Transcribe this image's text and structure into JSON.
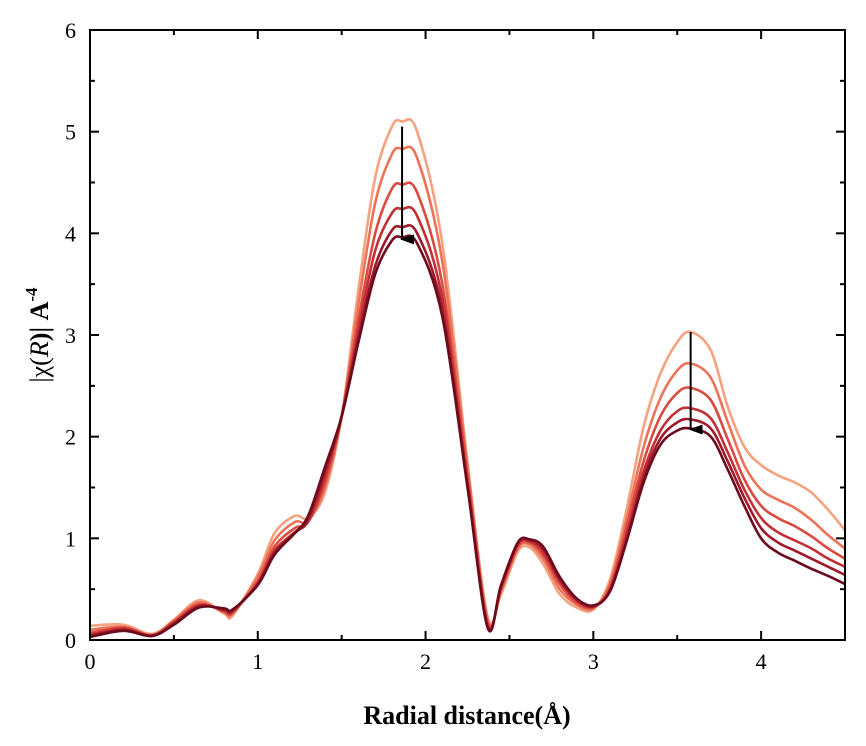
{
  "chart_data": {
    "type": "line",
    "title": "",
    "xlabel": "Radial distance(Å)",
    "ylabel_prefix": "|χ(",
    "ylabel_var": "R",
    "ylabel_mid": ")| A",
    "ylabel_sup": "-4",
    "xlim": [
      0,
      4.5
    ],
    "ylim": [
      0,
      6
    ],
    "xticks": [
      0,
      1,
      2,
      3,
      4
    ],
    "yticks": [
      0,
      1,
      2,
      3,
      4,
      5,
      6
    ],
    "grid": false,
    "legend": "none",
    "arrows": [
      {
        "x": 1.86,
        "from": 5.05,
        "to": 3.94
      },
      {
        "x": 3.58,
        "from": 3.03,
        "to": 2.07
      }
    ],
    "series": [
      {
        "color": "#f4a27f",
        "points": [
          [
            0,
            0.14
          ],
          [
            0.2,
            0.15
          ],
          [
            0.37,
            0.06
          ],
          [
            0.5,
            0.2
          ],
          [
            0.65,
            0.39
          ],
          [
            0.8,
            0.26
          ],
          [
            0.85,
            0.24
          ],
          [
            1.0,
            0.65
          ],
          [
            1.1,
            1.05
          ],
          [
            1.22,
            1.22
          ],
          [
            1.3,
            1.2
          ],
          [
            1.4,
            1.45
          ],
          [
            1.5,
            2.2
          ],
          [
            1.6,
            3.45
          ],
          [
            1.7,
            4.55
          ],
          [
            1.8,
            5.05
          ],
          [
            1.86,
            5.1
          ],
          [
            1.95,
            5.0
          ],
          [
            2.1,
            3.9
          ],
          [
            2.25,
            1.75
          ],
          [
            2.37,
            0.23
          ],
          [
            2.45,
            0.45
          ],
          [
            2.55,
            0.87
          ],
          [
            2.62,
            0.91
          ],
          [
            2.7,
            0.75
          ],
          [
            2.8,
            0.45
          ],
          [
            2.9,
            0.32
          ],
          [
            3.0,
            0.3
          ],
          [
            3.1,
            0.6
          ],
          [
            3.2,
            1.3
          ],
          [
            3.3,
            2.1
          ],
          [
            3.4,
            2.62
          ],
          [
            3.5,
            2.93
          ],
          [
            3.58,
            3.03
          ],
          [
            3.7,
            2.85
          ],
          [
            3.8,
            2.3
          ],
          [
            3.9,
            1.9
          ],
          [
            4.0,
            1.72
          ],
          [
            4.1,
            1.62
          ],
          [
            4.2,
            1.55
          ],
          [
            4.3,
            1.45
          ],
          [
            4.4,
            1.28
          ],
          [
            4.5,
            1.08
          ]
        ]
      },
      {
        "color": "#ec7358",
        "points": [
          [
            0,
            0.1
          ],
          [
            0.2,
            0.13
          ],
          [
            0.37,
            0.05
          ],
          [
            0.5,
            0.19
          ],
          [
            0.65,
            0.37
          ],
          [
            0.8,
            0.27
          ],
          [
            0.85,
            0.26
          ],
          [
            1.0,
            0.62
          ],
          [
            1.1,
            0.98
          ],
          [
            1.22,
            1.16
          ],
          [
            1.3,
            1.17
          ],
          [
            1.4,
            1.5
          ],
          [
            1.5,
            2.2
          ],
          [
            1.6,
            3.3
          ],
          [
            1.7,
            4.3
          ],
          [
            1.8,
            4.78
          ],
          [
            1.86,
            4.83
          ],
          [
            1.95,
            4.74
          ],
          [
            2.1,
            3.72
          ],
          [
            2.25,
            1.7
          ],
          [
            2.37,
            0.2
          ],
          [
            2.45,
            0.48
          ],
          [
            2.55,
            0.9
          ],
          [
            2.62,
            0.94
          ],
          [
            2.7,
            0.8
          ],
          [
            2.8,
            0.5
          ],
          [
            2.9,
            0.35
          ],
          [
            3.0,
            0.31
          ],
          [
            3.1,
            0.56
          ],
          [
            3.2,
            1.2
          ],
          [
            3.3,
            1.9
          ],
          [
            3.4,
            2.38
          ],
          [
            3.5,
            2.65
          ],
          [
            3.58,
            2.72
          ],
          [
            3.7,
            2.58
          ],
          [
            3.8,
            2.15
          ],
          [
            3.9,
            1.72
          ],
          [
            4.0,
            1.48
          ],
          [
            4.1,
            1.38
          ],
          [
            4.2,
            1.3
          ],
          [
            4.3,
            1.18
          ],
          [
            4.4,
            1.03
          ],
          [
            4.5,
            0.9
          ]
        ]
      },
      {
        "color": "#da4a40",
        "points": [
          [
            0,
            0.07
          ],
          [
            0.2,
            0.12
          ],
          [
            0.37,
            0.05
          ],
          [
            0.5,
            0.18
          ],
          [
            0.65,
            0.35
          ],
          [
            0.8,
            0.28
          ],
          [
            0.85,
            0.27
          ],
          [
            1.0,
            0.58
          ],
          [
            1.1,
            0.92
          ],
          [
            1.22,
            1.1
          ],
          [
            1.3,
            1.16
          ],
          [
            1.4,
            1.55
          ],
          [
            1.5,
            2.2
          ],
          [
            1.6,
            3.15
          ],
          [
            1.7,
            4.0
          ],
          [
            1.8,
            4.44
          ],
          [
            1.86,
            4.48
          ],
          [
            1.95,
            4.4
          ],
          [
            2.1,
            3.5
          ],
          [
            2.25,
            1.62
          ],
          [
            2.37,
            0.17
          ],
          [
            2.45,
            0.5
          ],
          [
            2.55,
            0.92
          ],
          [
            2.62,
            0.96
          ],
          [
            2.7,
            0.84
          ],
          [
            2.8,
            0.55
          ],
          [
            2.9,
            0.37
          ],
          [
            3.0,
            0.32
          ],
          [
            3.1,
            0.52
          ],
          [
            3.2,
            1.12
          ],
          [
            3.3,
            1.76
          ],
          [
            3.4,
            2.2
          ],
          [
            3.5,
            2.43
          ],
          [
            3.58,
            2.48
          ],
          [
            3.7,
            2.36
          ],
          [
            3.8,
            1.98
          ],
          [
            3.9,
            1.58
          ],
          [
            4.0,
            1.32
          ],
          [
            4.1,
            1.2
          ],
          [
            4.2,
            1.12
          ],
          [
            4.3,
            1.02
          ],
          [
            4.4,
            0.9
          ],
          [
            4.5,
            0.8
          ]
        ]
      },
      {
        "color": "#c22f35",
        "points": [
          [
            0,
            0.05
          ],
          [
            0.2,
            0.11
          ],
          [
            0.37,
            0.04
          ],
          [
            0.5,
            0.17
          ],
          [
            0.65,
            0.34
          ],
          [
            0.8,
            0.29
          ],
          [
            0.85,
            0.28
          ],
          [
            1.0,
            0.56
          ],
          [
            1.1,
            0.88
          ],
          [
            1.22,
            1.06
          ],
          [
            1.3,
            1.17
          ],
          [
            1.4,
            1.6
          ],
          [
            1.5,
            2.2
          ],
          [
            1.6,
            3.05
          ],
          [
            1.7,
            3.83
          ],
          [
            1.8,
            4.2
          ],
          [
            1.86,
            4.24
          ],
          [
            1.95,
            4.17
          ],
          [
            2.1,
            3.36
          ],
          [
            2.25,
            1.56
          ],
          [
            2.37,
            0.15
          ],
          [
            2.45,
            0.52
          ],
          [
            2.55,
            0.94
          ],
          [
            2.62,
            0.97
          ],
          [
            2.7,
            0.87
          ],
          [
            2.8,
            0.58
          ],
          [
            2.9,
            0.39
          ],
          [
            3.0,
            0.33
          ],
          [
            3.1,
            0.5
          ],
          [
            3.2,
            1.05
          ],
          [
            3.3,
            1.66
          ],
          [
            3.4,
            2.06
          ],
          [
            3.5,
            2.25
          ],
          [
            3.58,
            2.28
          ],
          [
            3.7,
            2.18
          ],
          [
            3.8,
            1.85
          ],
          [
            3.9,
            1.48
          ],
          [
            4.0,
            1.2
          ],
          [
            4.1,
            1.06
          ],
          [
            4.2,
            0.98
          ],
          [
            4.3,
            0.9
          ],
          [
            4.4,
            0.8
          ],
          [
            4.5,
            0.72
          ]
        ]
      },
      {
        "color": "#9e1a2a",
        "points": [
          [
            0,
            0.04
          ],
          [
            0.2,
            0.1
          ],
          [
            0.37,
            0.04
          ],
          [
            0.5,
            0.16
          ],
          [
            0.65,
            0.33
          ],
          [
            0.8,
            0.3
          ],
          [
            0.85,
            0.29
          ],
          [
            1.0,
            0.55
          ],
          [
            1.1,
            0.86
          ],
          [
            1.22,
            1.05
          ],
          [
            1.3,
            1.19
          ],
          [
            1.4,
            1.65
          ],
          [
            1.5,
            2.2
          ],
          [
            1.6,
            2.98
          ],
          [
            1.7,
            3.68
          ],
          [
            1.8,
            4.03
          ],
          [
            1.86,
            4.06
          ],
          [
            1.95,
            4.0
          ],
          [
            2.1,
            3.25
          ],
          [
            2.25,
            1.52
          ],
          [
            2.37,
            0.13
          ],
          [
            2.45,
            0.53
          ],
          [
            2.55,
            0.95
          ],
          [
            2.62,
            0.98
          ],
          [
            2.7,
            0.9
          ],
          [
            2.8,
            0.6
          ],
          [
            2.9,
            0.4
          ],
          [
            3.0,
            0.33
          ],
          [
            3.1,
            0.49
          ],
          [
            3.2,
            1.0
          ],
          [
            3.3,
            1.6
          ],
          [
            3.4,
            1.98
          ],
          [
            3.5,
            2.14
          ],
          [
            3.58,
            2.17
          ],
          [
            3.7,
            2.08
          ],
          [
            3.8,
            1.76
          ],
          [
            3.9,
            1.4
          ],
          [
            4.0,
            1.1
          ],
          [
            4.1,
            0.96
          ],
          [
            4.2,
            0.88
          ],
          [
            4.3,
            0.8
          ],
          [
            4.4,
            0.72
          ],
          [
            4.5,
            0.64
          ]
        ]
      },
      {
        "color": "#6d0a1e",
        "points": [
          [
            0,
            0.03
          ],
          [
            0.2,
            0.09
          ],
          [
            0.37,
            0.04
          ],
          [
            0.5,
            0.15
          ],
          [
            0.65,
            0.32
          ],
          [
            0.8,
            0.31
          ],
          [
            0.85,
            0.3
          ],
          [
            1.0,
            0.54
          ],
          [
            1.1,
            0.84
          ],
          [
            1.22,
            1.05
          ],
          [
            1.3,
            1.22
          ],
          [
            1.4,
            1.7
          ],
          [
            1.5,
            2.2
          ],
          [
            1.6,
            2.93
          ],
          [
            1.7,
            3.6
          ],
          [
            1.8,
            3.93
          ],
          [
            1.86,
            3.96
          ],
          [
            1.95,
            3.9
          ],
          [
            2.1,
            3.18
          ],
          [
            2.25,
            1.5
          ],
          [
            2.37,
            0.12
          ],
          [
            2.45,
            0.54
          ],
          [
            2.55,
            0.96
          ],
          [
            2.62,
            0.99
          ],
          [
            2.7,
            0.92
          ],
          [
            2.8,
            0.62
          ],
          [
            2.9,
            0.41
          ],
          [
            3.0,
            0.34
          ],
          [
            3.1,
            0.48
          ],
          [
            3.2,
            0.98
          ],
          [
            3.3,
            1.55
          ],
          [
            3.4,
            1.92
          ],
          [
            3.5,
            2.06
          ],
          [
            3.58,
            2.08
          ],
          [
            3.7,
            2.0
          ],
          [
            3.8,
            1.68
          ],
          [
            3.9,
            1.32
          ],
          [
            4.0,
            1.0
          ],
          [
            4.1,
            0.86
          ],
          [
            4.2,
            0.78
          ],
          [
            4.3,
            0.7
          ],
          [
            4.4,
            0.63
          ],
          [
            4.5,
            0.55
          ]
        ]
      }
    ]
  }
}
